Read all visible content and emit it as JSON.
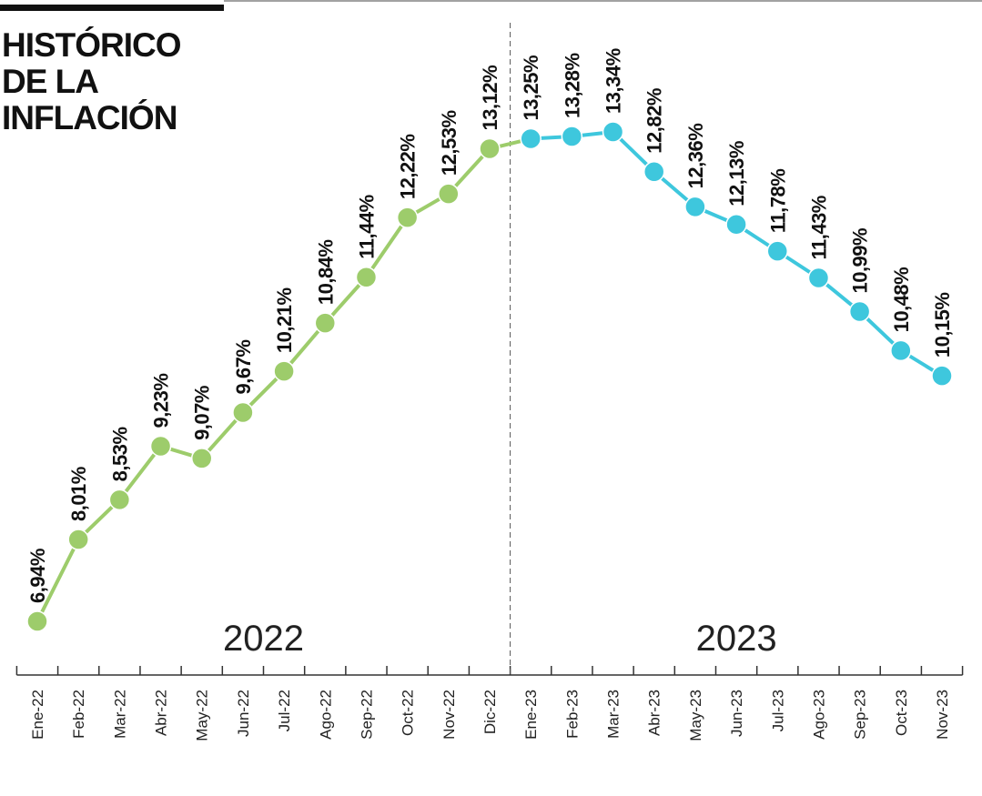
{
  "chart_data": {
    "type": "line",
    "title": "HISTÓRICO DE LA INFLACIÓN",
    "categories": [
      "Ene-22",
      "Feb-22",
      "Mar-22",
      "Abr-22",
      "May-22",
      "Jun-22",
      "Jul-22",
      "Ago-22",
      "Sep-22",
      "Oct-22",
      "Nov-22",
      "Dic-22",
      "Ene-23",
      "Feb-23",
      "Mar-23",
      "Abr-23",
      "May-23",
      "Jun-23",
      "Jul-23",
      "Ago-23",
      "Sep-23",
      "Oct-23",
      "Nov-23"
    ],
    "ylim": [
      6,
      14
    ],
    "series": [
      {
        "name": "2022",
        "color": "#9dcc6b",
        "values": [
          6.94,
          8.01,
          8.53,
          9.23,
          9.07,
          9.67,
          10.21,
          10.84,
          11.44,
          12.22,
          12.53,
          13.12,
          null,
          null,
          null,
          null,
          null,
          null,
          null,
          null,
          null,
          null,
          null
        ],
        "value_labels": [
          "6,94%",
          "8,01%",
          "8,53%",
          "9,23%",
          "9,07%",
          "9,67%",
          "10,21%",
          "10,84%",
          "11,44%",
          "12,22%",
          "12,53%",
          "13,12%",
          null,
          null,
          null,
          null,
          null,
          null,
          null,
          null,
          null,
          null,
          null
        ]
      },
      {
        "name": "2023",
        "color": "#3ec7dd",
        "values": [
          null,
          null,
          null,
          null,
          null,
          null,
          null,
          null,
          null,
          null,
          null,
          null,
          13.25,
          13.28,
          13.34,
          12.82,
          12.36,
          12.13,
          11.78,
          11.43,
          10.99,
          10.48,
          10.15
        ],
        "value_labels": [
          null,
          null,
          null,
          null,
          null,
          null,
          null,
          null,
          null,
          null,
          null,
          null,
          "13,25%",
          "13,28%",
          "13,34%",
          "12,82%",
          "12,36%",
          "12,13%",
          "11,78%",
          "11,43%",
          "10,99%",
          "10,48%",
          "10,15%"
        ]
      }
    ]
  }
}
